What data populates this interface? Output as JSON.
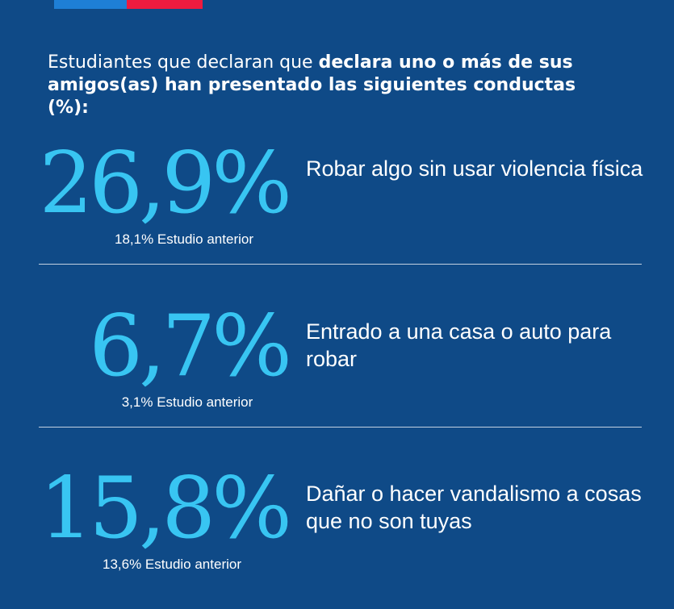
{
  "colors": {
    "background": "#0f4a87",
    "accent": "#38c5f2",
    "flag_blue": "#1e7fd6",
    "flag_red": "#ee1b3f",
    "text": "#ffffff"
  },
  "intro": {
    "normal": "Estudiantes que declaran que ",
    "bold": "declara uno o más de sus amigos(as) han presentado las siguientes conductas (%):"
  },
  "stats": [
    {
      "value": "26,9%",
      "description": "Robar algo sin usar violencia física",
      "previous": "18,1% Estudio anterior"
    },
    {
      "value": "6,7%",
      "description": "Entrado a una casa o auto para robar",
      "previous": "3,1% Estudio anterior"
    },
    {
      "value": "15,8%",
      "description": "Dañar o hacer vandalismo a cosas que no son tuyas",
      "previous": "13,6% Estudio anterior"
    }
  ]
}
